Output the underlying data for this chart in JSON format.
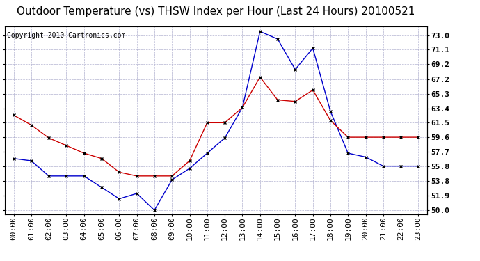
{
  "title": "Outdoor Temperature (vs) THSW Index per Hour (Last 24 Hours) 20100521",
  "copyright": "Copyright 2010 Cartronics.com",
  "hours": [
    "00:00",
    "01:00",
    "02:00",
    "03:00",
    "04:00",
    "05:00",
    "06:00",
    "07:00",
    "08:00",
    "09:00",
    "10:00",
    "11:00",
    "12:00",
    "13:00",
    "14:00",
    "15:00",
    "16:00",
    "17:00",
    "18:00",
    "19:00",
    "20:00",
    "21:00",
    "22:00",
    "23:00"
  ],
  "blue_data": [
    56.8,
    56.5,
    54.5,
    54.5,
    54.5,
    53.0,
    51.5,
    52.2,
    50.0,
    54.0,
    55.5,
    57.5,
    59.5,
    63.5,
    73.5,
    72.5,
    68.5,
    71.3,
    63.0,
    57.5,
    57.0,
    55.8,
    55.8,
    55.8
  ],
  "red_data": [
    62.5,
    61.2,
    59.5,
    58.5,
    57.5,
    56.8,
    55.0,
    54.5,
    54.5,
    54.5,
    56.5,
    61.5,
    61.5,
    63.5,
    67.5,
    64.5,
    64.3,
    65.8,
    61.8,
    59.6,
    59.6,
    59.6,
    59.6,
    59.6
  ],
  "blue_color": "#0000cc",
  "red_color": "#cc0000",
  "bg_color": "#ffffff",
  "grid_color": "#aaaacc",
  "yticks": [
    50.0,
    51.9,
    53.8,
    55.8,
    57.7,
    59.6,
    61.5,
    63.4,
    65.3,
    67.2,
    69.2,
    71.1,
    73.0
  ],
  "ylim": [
    49.5,
    74.2
  ],
  "title_fontsize": 11,
  "copyright_fontsize": 7,
  "tick_fontsize": 8
}
